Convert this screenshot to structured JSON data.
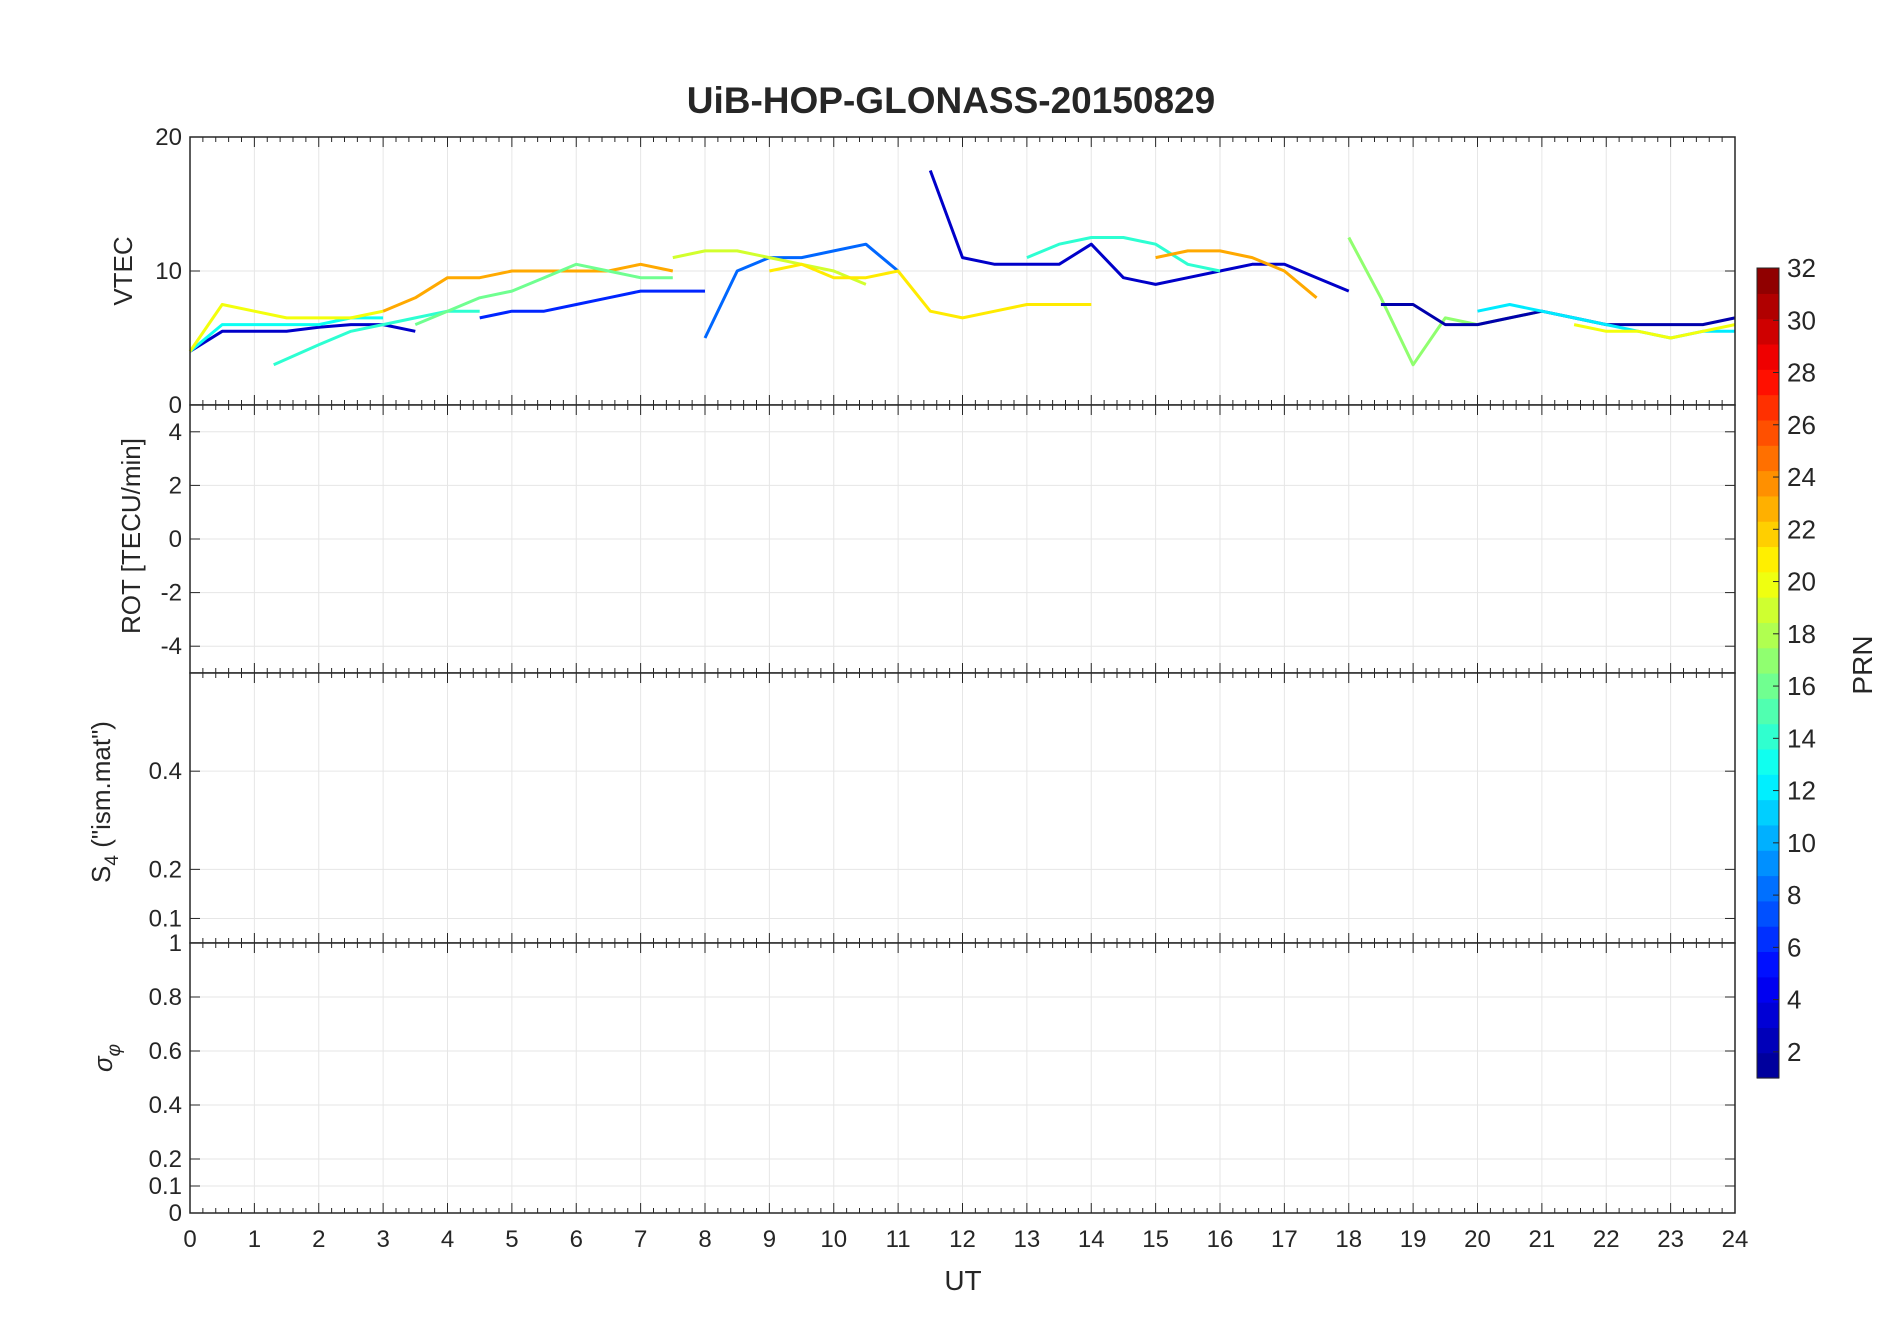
{
  "figure": {
    "title": "UiB-HOP-GLONASS-20150829",
    "xlabel": "UT",
    "xticks": [
      "0",
      "1",
      "2",
      "3",
      "4",
      "5",
      "6",
      "7",
      "8",
      "9",
      "10",
      "11",
      "12",
      "13",
      "14",
      "15",
      "16",
      "17",
      "18",
      "19",
      "20",
      "21",
      "22",
      "23",
      "24"
    ]
  },
  "colorbar": {
    "label": "PRN",
    "ticks": [
      "2",
      "4",
      "6",
      "8",
      "10",
      "12",
      "14",
      "16",
      "18",
      "20",
      "22",
      "24",
      "26",
      "28",
      "30",
      "32"
    ],
    "range": [
      1,
      32
    ],
    "colormap": [
      "#00008f",
      "#0000ff",
      "#0080ff",
      "#00ffff",
      "#80ff80",
      "#ffff00",
      "#ff8000",
      "#ff0000",
      "#800000"
    ]
  },
  "chart_data": [
    {
      "type": "line",
      "ylabel": "VTEC",
      "ylim": [
        0,
        20
      ],
      "xlim": [
        0,
        24
      ],
      "yticks": [
        "0",
        "10",
        "20"
      ],
      "series": [
        {
          "prn": 3,
          "x": [
            0,
            0.5,
            1,
            1.5,
            2,
            2.5,
            3,
            3.5
          ],
          "values": [
            4,
            5.5,
            5.5,
            5.5,
            5.8,
            6,
            6,
            5.5
          ]
        },
        {
          "prn": 13,
          "x": [
            0,
            0.5,
            1,
            1.5,
            2,
            2.5,
            3
          ],
          "values": [
            4,
            6,
            6,
            6,
            6,
            6.5,
            6.5
          ]
        },
        {
          "prn": 20,
          "x": [
            0,
            0.5,
            1,
            1.5,
            2,
            2.5,
            3
          ],
          "values": [
            4,
            7.5,
            7,
            6.5,
            6.5,
            6.5,
            7
          ]
        },
        {
          "prn": 23,
          "x": [
            3,
            3.5,
            4,
            4.5,
            5,
            5.5,
            6,
            6.5,
            7,
            7.5
          ],
          "values": [
            7,
            8,
            9.5,
            9.5,
            10,
            10,
            10,
            10,
            10.5,
            10
          ]
        },
        {
          "prn": 14,
          "x": [
            1.3,
            2,
            2.5,
            3,
            3.5,
            4,
            4.5
          ],
          "values": [
            3,
            4.5,
            5.5,
            6,
            6.5,
            7,
            7
          ]
        },
        {
          "prn": 6,
          "x": [
            4.5,
            5,
            5.5,
            6,
            6.5,
            7,
            7.5,
            8
          ],
          "values": [
            6.5,
            7,
            7,
            7.5,
            8,
            8.5,
            8.5,
            8.5
          ]
        },
        {
          "prn": 16,
          "x": [
            3.5,
            4,
            4.5,
            5,
            5.5,
            6,
            6.5,
            7,
            7.5
          ],
          "values": [
            6,
            7,
            8,
            8.5,
            9.5,
            10.5,
            10,
            9.5,
            9.5
          ]
        },
        {
          "prn": 8,
          "x": [
            8,
            8.5,
            9,
            9.5,
            10,
            10.5,
            11
          ],
          "values": [
            5,
            10,
            11,
            11,
            11.5,
            12,
            10
          ]
        },
        {
          "prn": 19,
          "x": [
            7.5,
            8,
            8.5,
            9,
            9.5,
            10,
            10.5
          ],
          "values": [
            11,
            11.5,
            11.5,
            11,
            10.5,
            10,
            9
          ]
        },
        {
          "prn": 21,
          "x": [
            9,
            9.5,
            10,
            10.5,
            11,
            11.5,
            12,
            12.5,
            13,
            13.5,
            14
          ],
          "values": [
            10,
            10.5,
            9.5,
            9.5,
            10,
            7,
            6.5,
            7,
            7.5,
            7.5,
            7.5
          ]
        },
        {
          "prn": 3,
          "x": [
            11.5,
            12,
            12.5,
            13,
            13.5,
            14,
            14.5,
            15,
            15.5,
            16,
            16.5,
            17,
            17.5,
            18
          ],
          "values": [
            17.5,
            11,
            10.5,
            10.5,
            10.5,
            12,
            9.5,
            9,
            9.5,
            10,
            10.5,
            10.5,
            9.5,
            8.5
          ]
        },
        {
          "prn": 14,
          "x": [
            13,
            13.5,
            14,
            14.5,
            15,
            15.5,
            16
          ],
          "values": [
            11,
            12,
            12.5,
            12.5,
            12,
            10.5,
            10
          ]
        },
        {
          "prn": 23,
          "x": [
            15,
            15.5,
            16,
            16.5,
            17,
            17.5
          ],
          "values": [
            11,
            11.5,
            11.5,
            11,
            10,
            8
          ]
        },
        {
          "prn": 17,
          "x": [
            18,
            18.5,
            19,
            19.5,
            20,
            20.5,
            21
          ],
          "values": [
            12.5,
            8,
            3,
            6.5,
            6,
            6.5,
            7
          ]
        },
        {
          "prn": 2,
          "x": [
            18.5,
            19,
            19.5,
            20,
            20.5,
            21,
            21.5,
            22,
            22.5,
            23,
            23.5,
            24
          ],
          "values": [
            7.5,
            7.5,
            6,
            6,
            6.5,
            7,
            6.5,
            6,
            6,
            6,
            6,
            6.5
          ]
        },
        {
          "prn": 12,
          "x": [
            20,
            20.5,
            21,
            21.5,
            22,
            22.5,
            23,
            23.5,
            24
          ],
          "values": [
            7,
            7.5,
            7,
            6.5,
            6,
            5.5,
            5,
            5.5,
            5.5
          ]
        },
        {
          "prn": 20,
          "x": [
            21.5,
            22,
            22.5,
            23,
            23.5,
            24
          ],
          "values": [
            6,
            5.5,
            5.5,
            5,
            5.5,
            6
          ]
        }
      ]
    },
    {
      "type": "line",
      "ylabel": "ROT [TECU/min]",
      "ylim": [
        -5,
        5
      ],
      "xlim": [
        0,
        24
      ],
      "yticks": [
        "-4",
        "-2",
        "0",
        "2",
        "4"
      ],
      "series": []
    },
    {
      "type": "line",
      "ylabel_main": "S",
      "ylabel_sub": "4",
      "ylabel_rest": " (\"ism.mat\")",
      "ylim": [
        0.05,
        0.6
      ],
      "xlim": [
        0,
        24
      ],
      "yticks": [
        "0.1",
        "0.2",
        "0.4"
      ],
      "series": []
    },
    {
      "type": "line",
      "ylabel_main": "σ",
      "ylabel_sub": "φ",
      "ylim": [
        0,
        1
      ],
      "xlim": [
        0,
        24
      ],
      "yticks": [
        "0",
        "0.1",
        "0.2",
        "0.4",
        "0.6",
        "0.8",
        "1"
      ],
      "series": []
    }
  ]
}
